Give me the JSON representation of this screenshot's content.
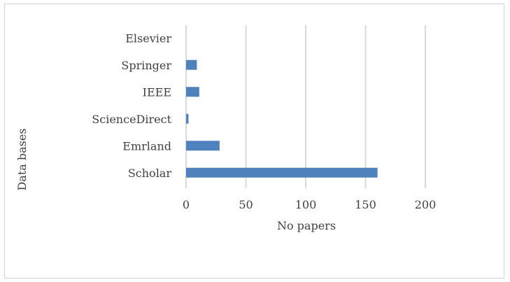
{
  "chart_data": {
    "type": "bar",
    "orientation": "horizontal",
    "categories": [
      "Elsevier",
      "Springer",
      "IEEE",
      "ScienceDirect",
      "Emrland",
      "Scholar"
    ],
    "values": [
      0,
      9,
      11,
      2,
      28,
      160
    ],
    "xlabel": "No papers",
    "ylabel": "Data bases",
    "xlim": [
      0,
      200
    ],
    "xticks": [
      0,
      50,
      100,
      150,
      200
    ],
    "xtick_labels": [
      "0",
      "50",
      "100",
      "150",
      "200"
    ],
    "grid": "vertical",
    "legend": "none",
    "colors": {
      "bar": "#4f81bd",
      "grid": "#d9d9d9",
      "text": "#404040",
      "border": "#d0d0d0"
    }
  }
}
